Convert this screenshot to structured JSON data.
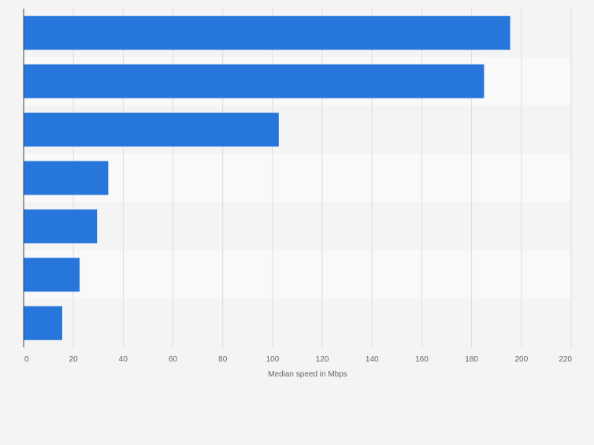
{
  "chart_data": {
    "type": "bar",
    "orientation": "horizontal",
    "categories": [
      "",
      "",
      "",
      "",
      "",
      "",
      ""
    ],
    "values": [
      195.5,
      185,
      102.5,
      34,
      29.5,
      22.5,
      15.5
    ],
    "title": "",
    "xlabel": "Median speed in Mbps",
    "ylabel": "",
    "xlim": [
      0,
      220
    ],
    "ticks": [
      0,
      20,
      40,
      60,
      80,
      100,
      120,
      140,
      160,
      180,
      200,
      220
    ],
    "tick_labels": [
      "0",
      "20",
      "40",
      "60",
      "80",
      "100",
      "120",
      "140",
      "160",
      "180",
      "200",
      "220"
    ],
    "grid": "vertical",
    "legend": "none",
    "colors": {
      "bar": "#2776dc",
      "band_light": "#f9f9f9",
      "band_dark": "#f4f4f4",
      "grid": "#dcdcdc",
      "axis": "#444444",
      "text": "#666666"
    }
  }
}
